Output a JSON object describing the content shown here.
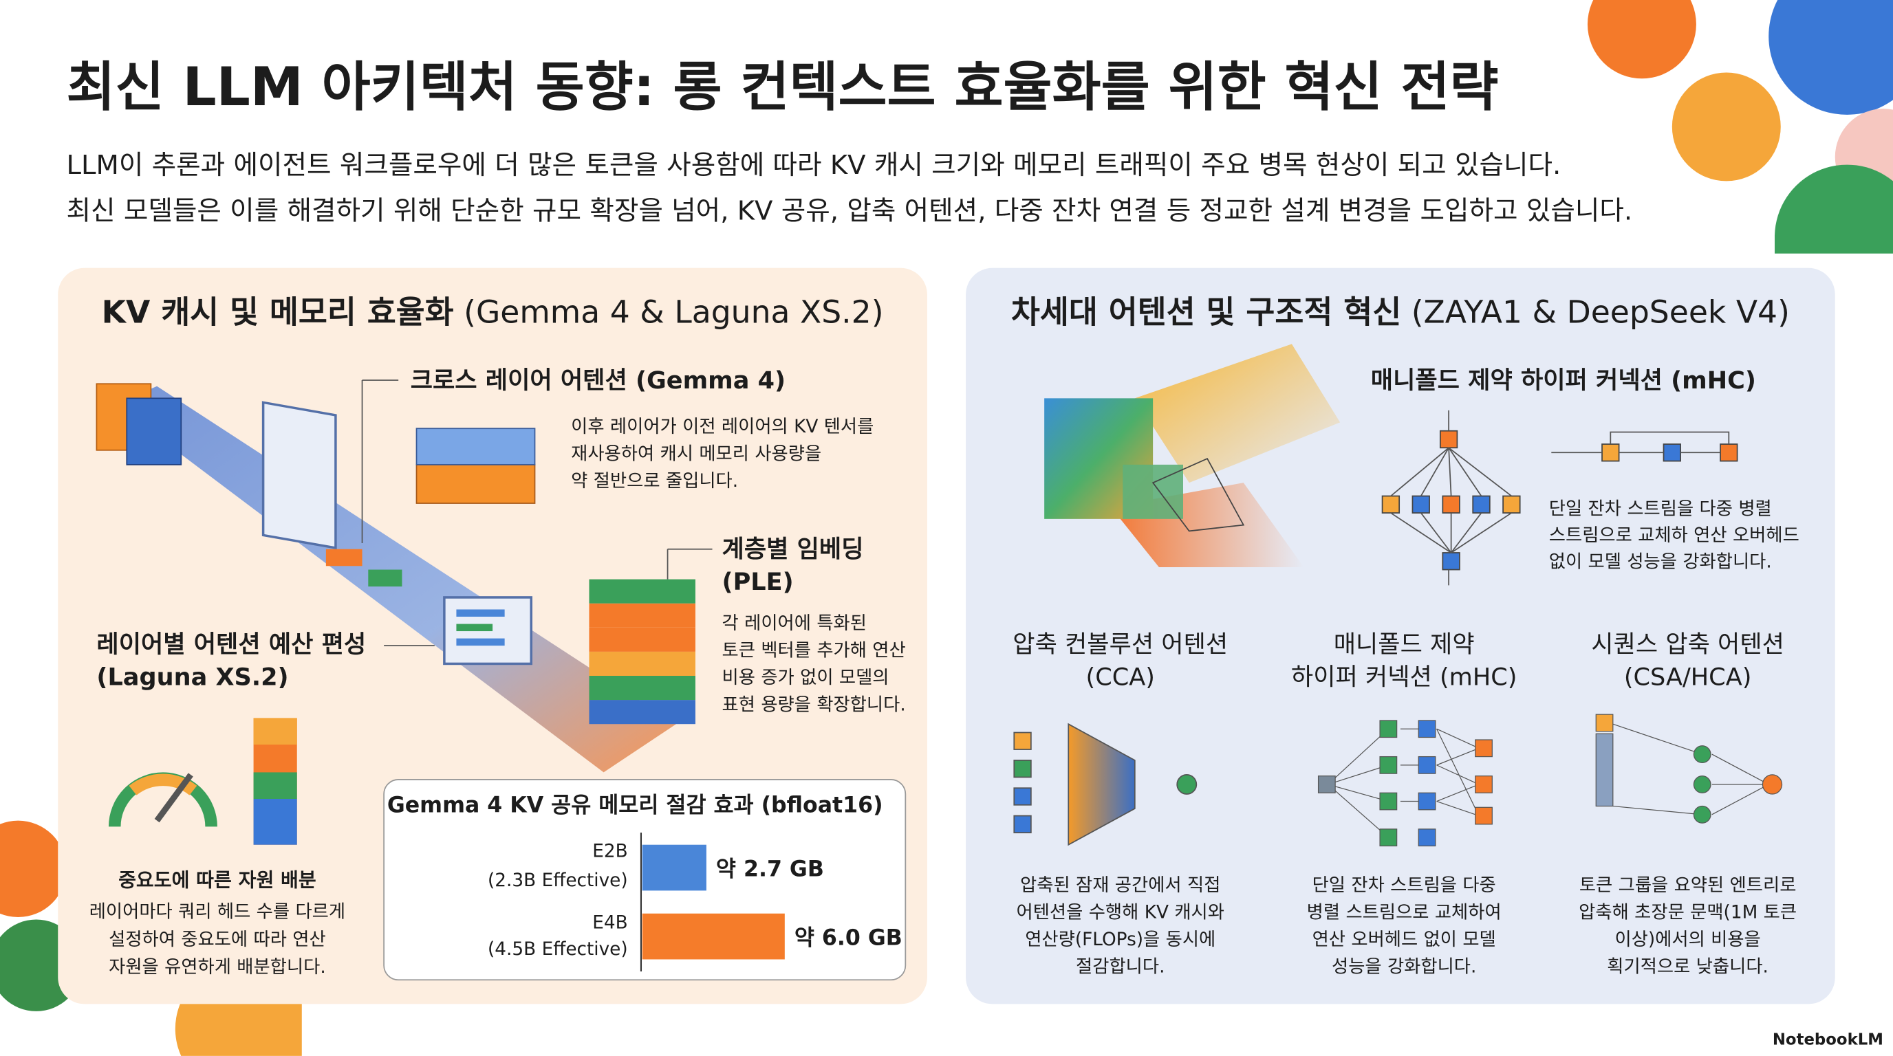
{
  "title": "최신 LLM 아키텍처 동향: 롱 컨텍스트 효율화를 위한 혁신 전략",
  "intro": [
    "LLM이 추론과 에이전트 워크플로우에 더 많은 토큰을 사용함에 따라 KV 캐시 크기와 메모리 트래픽이 주요 병목 현상이 되고 있습니다.",
    "최신 모델들은 이를 해결하기 위해 단순한 규모 확장을 넘어, KV 공유, 압축 어텐션, 다중 잔차 연결 등 정교한 설계 변경을 도입하고 있습니다."
  ],
  "left_panel": {
    "heading": "KV 캐시 및 메모리 효율화",
    "heading_models": "(Gemma 4 & Laguna XS.2)",
    "cross_layer": {
      "title": "크로스 레이어 어텐션 (Gemma 4)",
      "desc": [
        "이후 레이어가 이전 레이어의 KV 텐서를",
        "재사용하여 캐시 메모리 사용량을",
        "약 절반으로 줄입니다."
      ]
    },
    "ple": {
      "title": [
        "계층별 임베딩",
        "(PLE)"
      ],
      "desc": [
        "각 레이어에 특화된",
        "토큰 벡터를 추가해 연산",
        "비용 증가 없이 모델의",
        "표현 용량을 확장합니다."
      ]
    },
    "budget": {
      "title": [
        "레이어별 어텐션 예산 편성",
        "(Laguna XS.2)"
      ]
    },
    "allocation": {
      "title": "중요도에 따른 자원 배분",
      "desc": [
        "레이어마다 쿼리 헤드 수를 다르게",
        "설정하여 중요도에 따라 연산",
        "자원을 유연하게 배분합니다."
      ]
    },
    "kv_chart": {
      "type": "bar",
      "title": "Gemma 4 KV 공유 메모리 절감 효과 (bfloat16)",
      "categories": [
        "E2B",
        "E4B"
      ],
      "sublabels": [
        "(2.3B Effective)",
        "(4.5B Effective)"
      ],
      "series": [
        {
          "colors": [
            "#4a86d8",
            "#f57c2a"
          ],
          "values": [
            2.7,
            6.0
          ],
          "value_labels": [
            "약 2.7 GB",
            "약 6.0 GB"
          ]
        }
      ]
    }
  },
  "right_panel": {
    "heading": "차세대 어텐션 및 구조적 혁신",
    "heading_models": "(ZAYA1 & DeepSeek V4)",
    "mhc_top": {
      "title": "매니폴드 제약 하이퍼 커넥션 (mHC)",
      "desc": [
        "단일 잔차 스트림을 다중 병렬",
        "스트림으로 교체하 연산 오버헤드",
        "없이 모델 성능을 강화합니다."
      ]
    },
    "columns": [
      {
        "title": [
          "압축 컨볼루션 어텐션",
          "(CCA)"
        ],
        "desc": [
          "압축된 잠재 공간에서 직접",
          "어텐션을 수행해 KV 캐시와",
          "연산량(FLOPs)을 동시에",
          "절감합니다."
        ]
      },
      {
        "title": [
          "매니폴드 제약",
          "하이퍼 커넥션 (mHC)"
        ],
        "desc": [
          "단일 잔차 스트림을 다중",
          "병렬 스트림으로 교체하여",
          "연산 오버헤드 없이 모델",
          "성능을 강화합니다."
        ]
      },
      {
        "title": [
          "시퀀스 압축 어텐션",
          "(CSA/HCA)"
        ],
        "desc": [
          "토큰 그룹을 요약된 엔트리로",
          "압축해 초장문 문맥(1M 토큰",
          "이상)에서의 비용을",
          "획기적으로 낮춥니다."
        ]
      }
    ]
  },
  "brand": "NotebookLM"
}
